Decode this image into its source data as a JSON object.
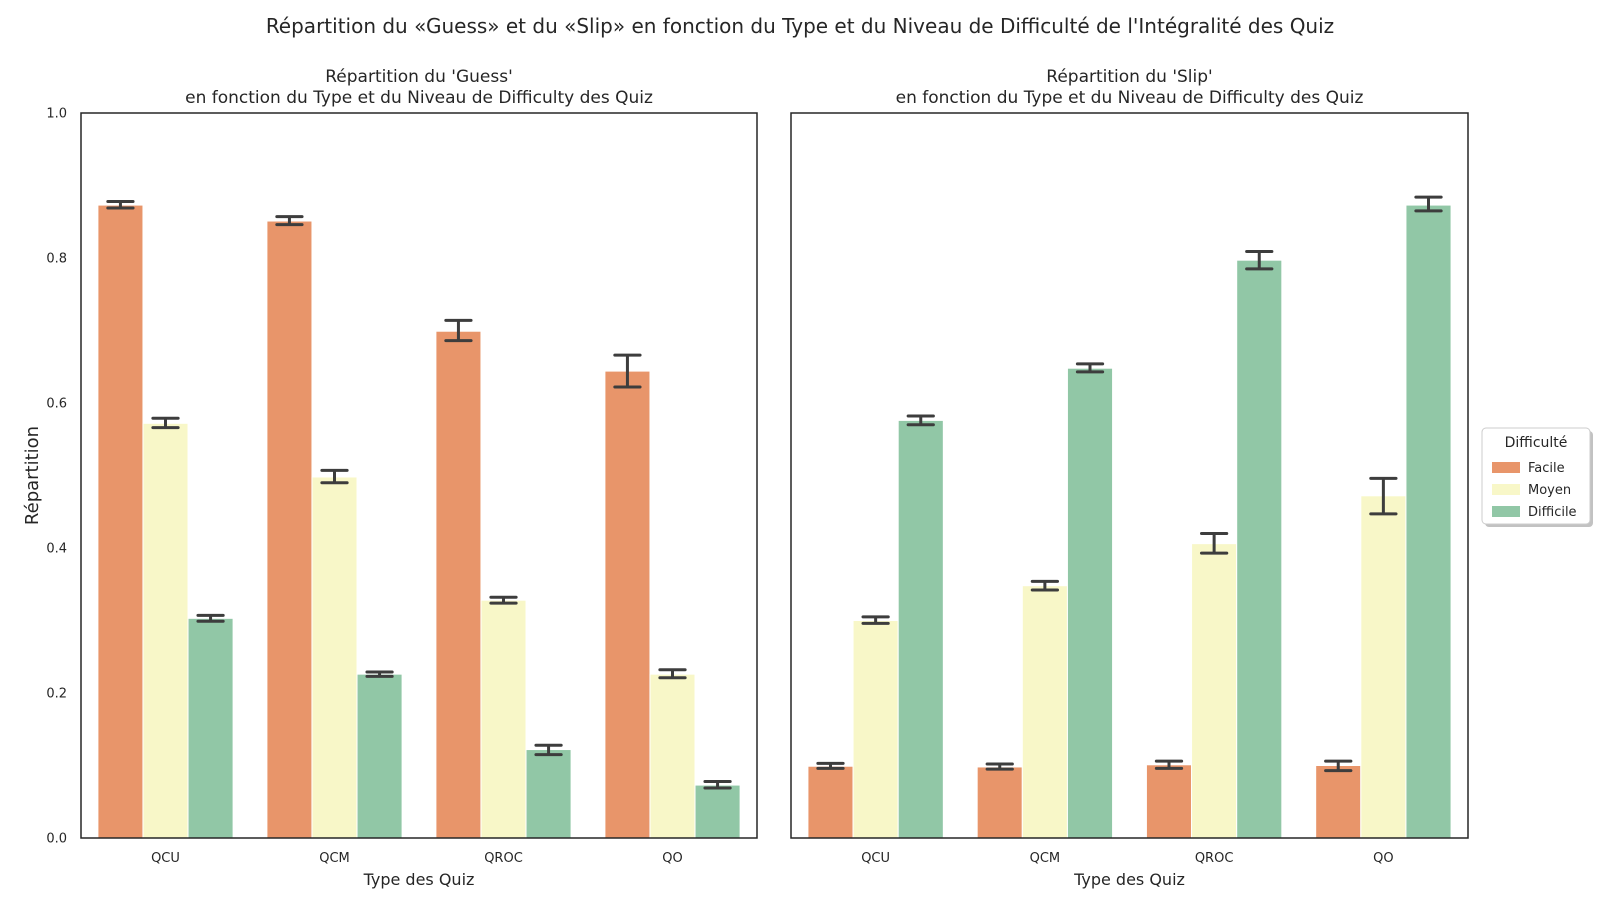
{
  "title": "Répartition du «Guess» et du «Slip» en fonction du Type et du Niveau de Difficulté de l'Intégralité des Quiz",
  "colors": {
    "Facile": "#e8956a",
    "Moyen": "#f8f7c8",
    "Difficile": "#91c7a6",
    "errorbar": "#3d3d3d"
  },
  "chart_data": [
    {
      "type": "bar",
      "title": "Répartition du 'Guess'\nen fonction du Type et du Niveau de Difficulty des Quiz",
      "xlabel": "Type des Quiz",
      "ylabel": "Répartition",
      "ylim": [
        0,
        1.0
      ],
      "yticks": [
        "0.0",
        "0.2",
        "0.4",
        "0.6",
        "0.8",
        "1.0"
      ],
      "categories": [
        "QCU",
        "QCM",
        "QROC",
        "QO"
      ],
      "series": [
        {
          "name": "Facile",
          "values": [
            0.873,
            0.851,
            0.699,
            0.644
          ],
          "err_low": [
            0.869,
            0.846,
            0.686,
            0.622
          ],
          "err_high": [
            0.878,
            0.857,
            0.714,
            0.666
          ]
        },
        {
          "name": "Moyen",
          "values": [
            0.572,
            0.498,
            0.328,
            0.226
          ],
          "err_low": [
            0.566,
            0.49,
            0.324,
            0.221
          ],
          "err_high": [
            0.579,
            0.507,
            0.332,
            0.232
          ]
        },
        {
          "name": "Difficile",
          "values": [
            0.303,
            0.226,
            0.122,
            0.073
          ],
          "err_low": [
            0.299,
            0.223,
            0.115,
            0.069
          ],
          "err_high": [
            0.307,
            0.229,
            0.128,
            0.078
          ]
        }
      ]
    },
    {
      "type": "bar",
      "title": "Répartition du 'Slip'\nen fonction du Type et du Niveau de Difficulty des Quiz",
      "xlabel": "Type des Quiz",
      "ylabel": "",
      "ylim": [
        0,
        1.0
      ],
      "categories": [
        "QCU",
        "QCM",
        "QROC",
        "QO"
      ],
      "series": [
        {
          "name": "Facile",
          "values": [
            0.099,
            0.098,
            0.101,
            0.1
          ],
          "err_low": [
            0.096,
            0.095,
            0.096,
            0.093
          ],
          "err_high": [
            0.103,
            0.102,
            0.106,
            0.106
          ]
        },
        {
          "name": "Moyen",
          "values": [
            0.3,
            0.348,
            0.406,
            0.472
          ],
          "err_low": [
            0.296,
            0.342,
            0.393,
            0.447
          ],
          "err_high": [
            0.305,
            0.354,
            0.42,
            0.496
          ]
        },
        {
          "name": "Difficile",
          "values": [
            0.576,
            0.648,
            0.797,
            0.873
          ],
          "err_low": [
            0.57,
            0.643,
            0.785,
            0.865
          ],
          "err_high": [
            0.582,
            0.654,
            0.809,
            0.884
          ]
        }
      ]
    }
  ],
  "legend": {
    "title": "Difficulté",
    "placement": "right",
    "items": [
      "Facile",
      "Moyen",
      "Difficile"
    ]
  }
}
